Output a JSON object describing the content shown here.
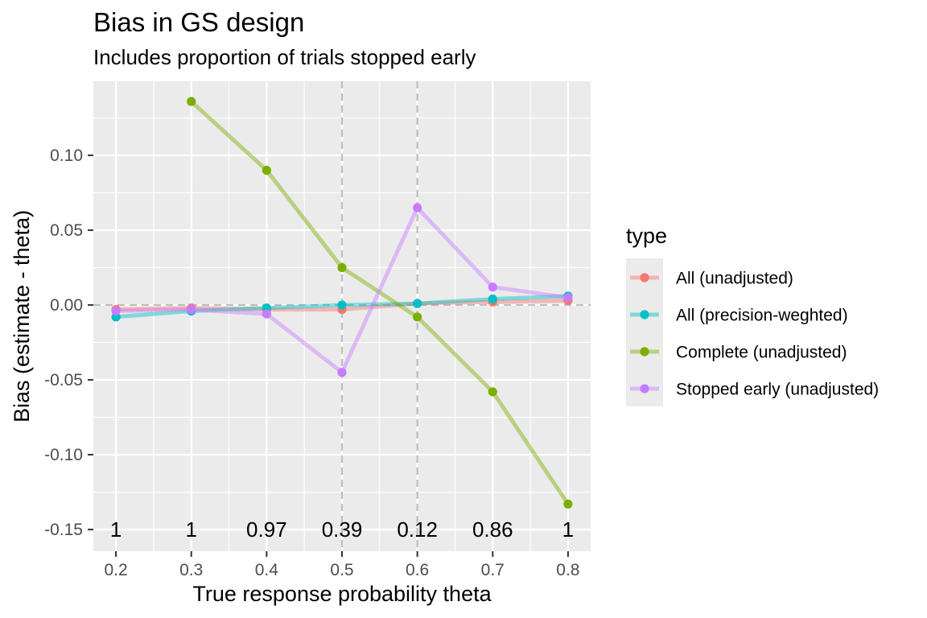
{
  "chart_data": {
    "type": "line",
    "title": "Bias in GS design",
    "subtitle": "Includes proportion of trials stopped early",
    "xlabel": "True response probability theta",
    "ylabel": "Bias (estimate - theta)",
    "x": [
      0.2,
      0.3,
      0.4,
      0.5,
      0.6,
      0.7,
      0.8
    ],
    "x_ticks": [
      "0.2",
      "0.3",
      "0.4",
      "0.5",
      "0.6",
      "0.7",
      "0.8"
    ],
    "y_ticks": [
      "0.10",
      "0.05",
      "0.00",
      "-0.05",
      "-0.10",
      "-0.15"
    ],
    "xlim": [
      0.17,
      0.83
    ],
    "ylim": [
      -0.1645,
      0.1495
    ],
    "reference_lines": {
      "horizontal": [
        0
      ],
      "vertical": [
        0.5,
        0.6
      ]
    },
    "annotations": [
      "1",
      "1",
      "0.97",
      "0.39",
      "0.12",
      "0.86",
      "1"
    ],
    "annotation_y": -0.15,
    "grid": true,
    "legend": {
      "title": "type",
      "position": "right"
    },
    "series": [
      {
        "name": "All (unadjusted)",
        "color": "#F8766D",
        "values": [
          -0.003,
          -0.002,
          -0.003,
          -0.003,
          0.001,
          0.002,
          0.003
        ]
      },
      {
        "name": "All (precision-weghted)",
        "color": "#00BFC4",
        "values": [
          -0.008,
          -0.004,
          -0.002,
          0.0,
          0.001,
          0.004,
          0.006
        ]
      },
      {
        "name": "Complete (unadjusted)",
        "color": "#7CAE00",
        "values": [
          null,
          0.136,
          0.09,
          0.025,
          -0.008,
          -0.058,
          -0.133
        ]
      },
      {
        "name": "Stopped early (unadjusted)",
        "color": "#C77CFF",
        "values": [
          -0.004,
          -0.003,
          -0.006,
          -0.045,
          0.065,
          0.012,
          0.005
        ]
      }
    ]
  }
}
